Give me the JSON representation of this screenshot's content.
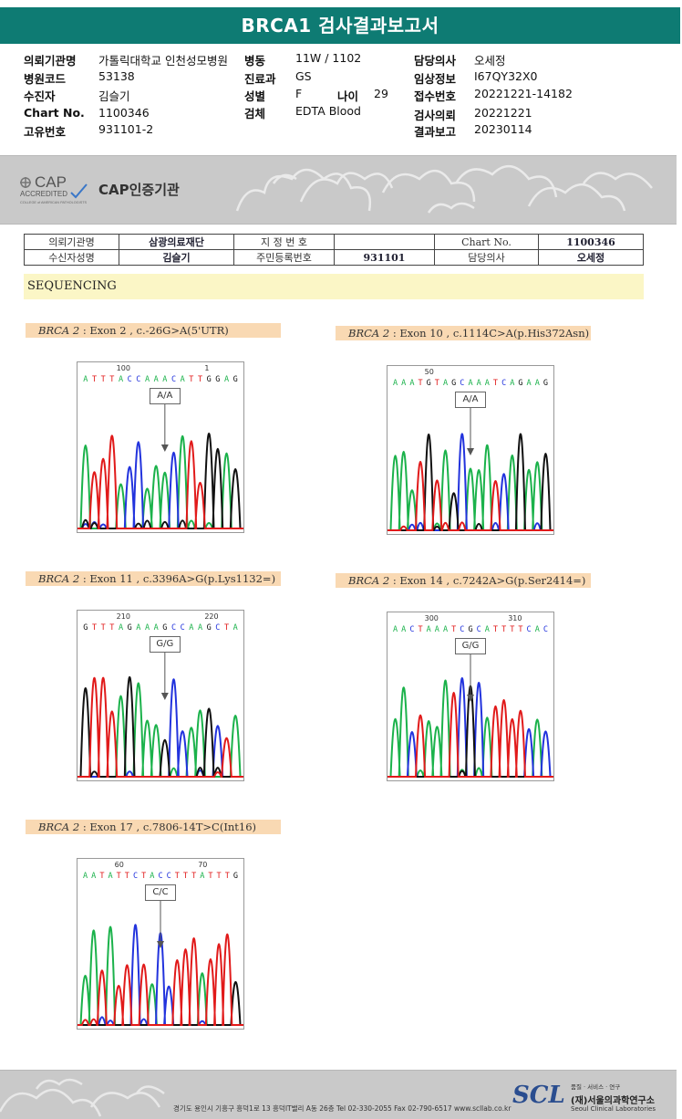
{
  "report": {
    "title": "BRCA1 검사결과보고서"
  },
  "info": {
    "col1": [
      {
        "label": "의뢰기관명",
        "value": "가톨릭대학교 인천성모병원"
      },
      {
        "label": "병원코드",
        "value": "53138"
      },
      {
        "label": "수진자",
        "value": "김슬기"
      },
      {
        "label": "Chart No.",
        "value": "1100346"
      },
      {
        "label": "고유번호",
        "value": "931101-2"
      }
    ],
    "col2": [
      {
        "label": "병동",
        "value": "11W / 1102"
      },
      {
        "label": "진료과",
        "value": "GS"
      },
      {
        "label": "성별",
        "value": "F"
      },
      {
        "label": "검체",
        "value": "EDTA Blood"
      }
    ],
    "age": {
      "label": "나이",
      "value": "29"
    },
    "col3": [
      {
        "label": "담당의사",
        "value": "오세정"
      },
      {
        "label": "임상정보",
        "value": "I67QY32X0"
      },
      {
        "label": "접수번호",
        "value": "20221221-14182"
      },
      {
        "label": "검사의뢰",
        "value": "20221221"
      },
      {
        "label": "결과보고",
        "value": "20230114"
      }
    ]
  },
  "cap": {
    "logo_text": "CAP",
    "logo_sub": "ACCREDITED",
    "logo_small": "COLLEGE of AMERICAN PATHOLOGISTS",
    "label": "CAP인증기관"
  },
  "patient_table": {
    "r1": [
      "의뢰기관명",
      "삼광의료재단",
      "지 정 번 호",
      "",
      "Chart No.",
      "1100346"
    ],
    "r2": [
      "수신자성명",
      "김슬기",
      "주민등록번호",
      "931101",
      "담당의사",
      "오세정"
    ]
  },
  "section": "SEQUENCING",
  "mutations": [
    {
      "gene": "BRCA 2",
      "desc": " : Exon 2 , c.-26G>A(5'UTR)",
      "seq": "A T T T A C C A A A C A T T G G A G",
      "pos_a": "100",
      "pos_b": "1",
      "call": "A/A"
    },
    {
      "gene": "BRCA 2",
      "desc": " : Exon 10 , c.1114C>A(p.His372Asn)",
      "seq": "A A A T G T A G C A A A T C A G A A G",
      "pos_a": "50",
      "pos_b": "",
      "call": "A/A"
    },
    {
      "gene": "BRCA 2",
      "desc": " : Exon 11 , c.3396A>G(p.Lys1132=)",
      "seq": "G T T T A G A A A G C C A A G C T A",
      "pos_a": "210",
      "pos_b": "220",
      "call": "G/G"
    },
    {
      "gene": "BRCA 2",
      "desc": " : Exon 14 , c.7242A>G(p.Ser2414=)",
      "seq": "A A C T A A A T C G C A T T T T C A C",
      "pos_a": "300",
      "pos_b": "310",
      "call": "G/G"
    },
    {
      "gene": "BRCA 2",
      "desc": " : Exon 17 , c.7806-14T>C(Int16)",
      "seq": "A A T A T T C T A C C T T T A T T T G",
      "pos_a": "60",
      "pos_b": "70",
      "call": "C/C"
    }
  ],
  "footer": {
    "address": "경기도 용인시 기흥구 흥덕1로 13 흥덕IT밸리 A동 26층   Tel 02-330-2055   Fax 02-790-6517   www.scllab.co.kr",
    "logo": "SCL",
    "tag": "품질 · 서비스 · 연구",
    "name": "(재)서울의과학연구소",
    "name_en": "Seoul Clinical Laboratories"
  },
  "colors": {
    "title_bar": "#0e7b73",
    "A": "#1bb24b",
    "C": "#2233dd",
    "G": "#111111",
    "T": "#e11a1a"
  }
}
